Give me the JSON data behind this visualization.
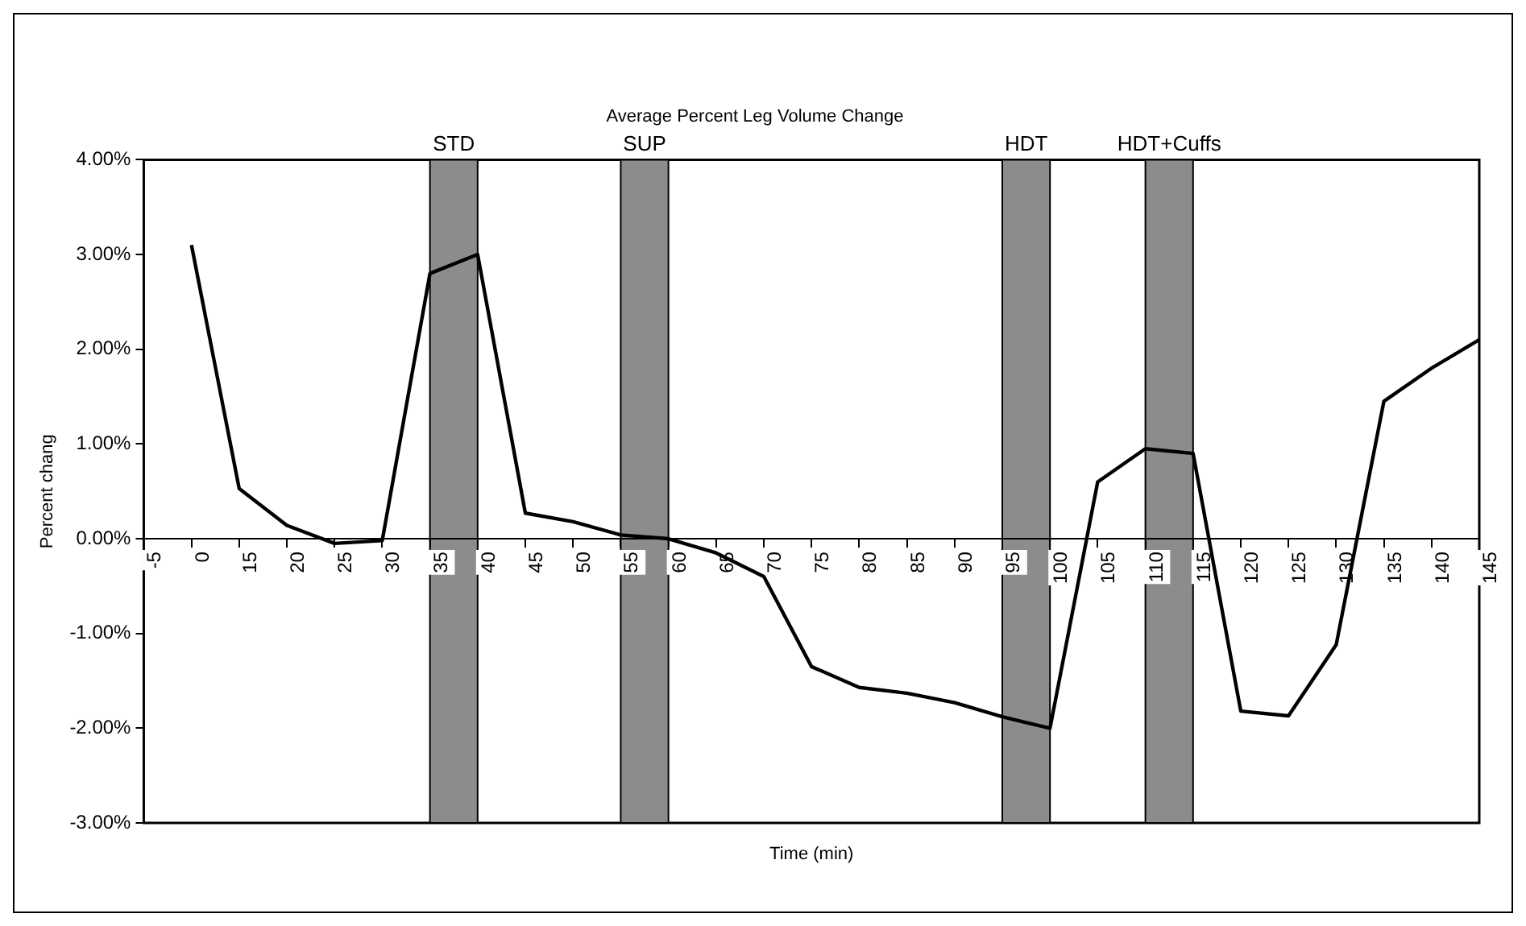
{
  "chart_data": {
    "type": "line",
    "title": "Average Percent Leg Volume Change",
    "xlabel": "Time (min)",
    "ylabel": "Percent chang",
    "categories": [
      "-5",
      "0",
      "15",
      "20",
      "25",
      "30",
      "35",
      "40",
      "45",
      "50",
      "55",
      "60",
      "65",
      "70",
      "75",
      "80",
      "85",
      "90",
      "95",
      "100",
      "105",
      "110",
      "115",
      "120",
      "125",
      "130",
      "135",
      "140",
      "145"
    ],
    "series": [
      {
        "color": "#000000",
        "values": [
          null,
          3.1,
          0.53,
          0.14,
          -0.05,
          -0.02,
          2.8,
          3.0,
          0.27,
          0.18,
          0.04,
          0.0,
          -0.15,
          -0.4,
          -1.35,
          -1.57,
          -1.63,
          -1.73,
          -1.88,
          -2.0,
          0.6,
          0.95,
          0.9,
          -1.82,
          -1.87,
          -1.12,
          1.45,
          1.8,
          2.1
        ]
      }
    ],
    "ylim": [
      -3,
      4
    ],
    "yticks": [
      {
        "value": -3,
        "label": "-3.00%"
      },
      {
        "value": -2,
        "label": "-2.00%"
      },
      {
        "value": -1,
        "label": "-1.00%"
      },
      {
        "value": 0,
        "label": "0.00%"
      },
      {
        "value": 1,
        "label": "1.00%"
      },
      {
        "value": 2,
        "label": "2.00%"
      },
      {
        "value": 3,
        "label": "3.00%"
      },
      {
        "value": 4,
        "label": "4.00%"
      }
    ],
    "bands": [
      {
        "axis": "x",
        "from": "35",
        "to": "40",
        "label": "STD",
        "color": "#8c8c8c"
      },
      {
        "axis": "x",
        "from": "55",
        "to": "60",
        "label": "SUP",
        "color": "#8c8c8c"
      },
      {
        "axis": "x",
        "from": "95",
        "to": "100",
        "label": "HDT",
        "color": "#8c8c8c"
      },
      {
        "axis": "x",
        "from": "110",
        "to": "115",
        "label": "HDT+Cuffs",
        "color": "#8c8c8c"
      }
    ],
    "grid": false,
    "legend": false,
    "marker": "none",
    "line_style": "solid"
  }
}
